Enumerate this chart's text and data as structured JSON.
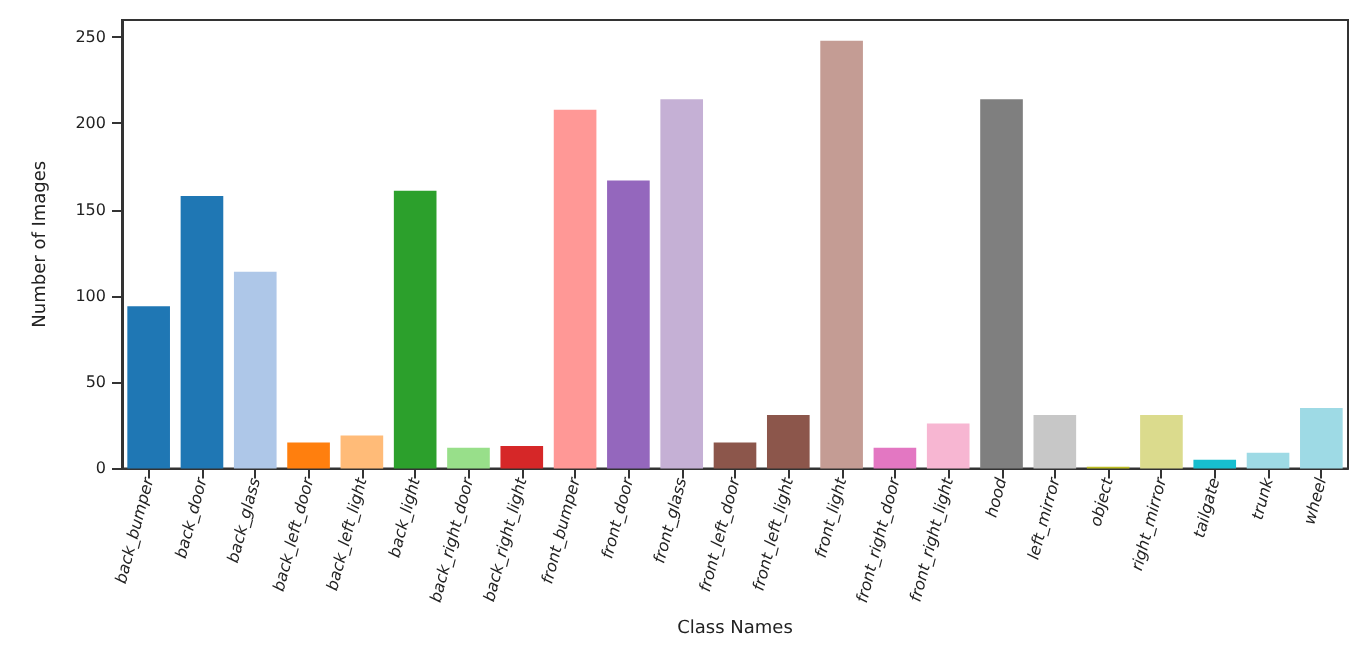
{
  "chart_data": {
    "type": "bar",
    "xlabel": "Class Names",
    "ylabel": "Number of Images",
    "categories": [
      "back_bumper",
      "back_door",
      "back_glass",
      "back_left_door",
      "back_left_light",
      "back_light",
      "back_right_door",
      "back_right_light",
      "front_bumper",
      "front_door",
      "front_glass",
      "front_left_door",
      "front_left_light",
      "front_light",
      "front_right_door",
      "front_right_light",
      "hood",
      "left_mirror",
      "object",
      "right_mirror",
      "tailgate",
      "trunk",
      "wheel"
    ],
    "values": [
      94,
      158,
      114,
      15,
      19,
      161,
      12,
      13,
      208,
      167,
      214,
      15,
      31,
      248,
      12,
      26,
      214,
      31,
      1,
      31,
      5,
      9,
      35
    ],
    "colors": [
      "#1f77b4",
      "#1f77b4",
      "#aec7e8",
      "#ff7f0e",
      "#ffbb78",
      "#2ca02c",
      "#98df8a",
      "#d62728",
      "#ff9896",
      "#9467bd",
      "#c5b0d5",
      "#8c564b",
      "#8c564b",
      "#c49c94",
      "#e377c2",
      "#f7b6d2",
      "#7f7f7f",
      "#c7c7c7",
      "#bcbd22",
      "#dbdb8d",
      "#17becf",
      "#9edae5",
      "#9edae5"
    ],
    "ylim": [
      0,
      260
    ],
    "yticks": [
      0,
      50,
      100,
      150,
      200,
      250
    ],
    "grid": false
  }
}
